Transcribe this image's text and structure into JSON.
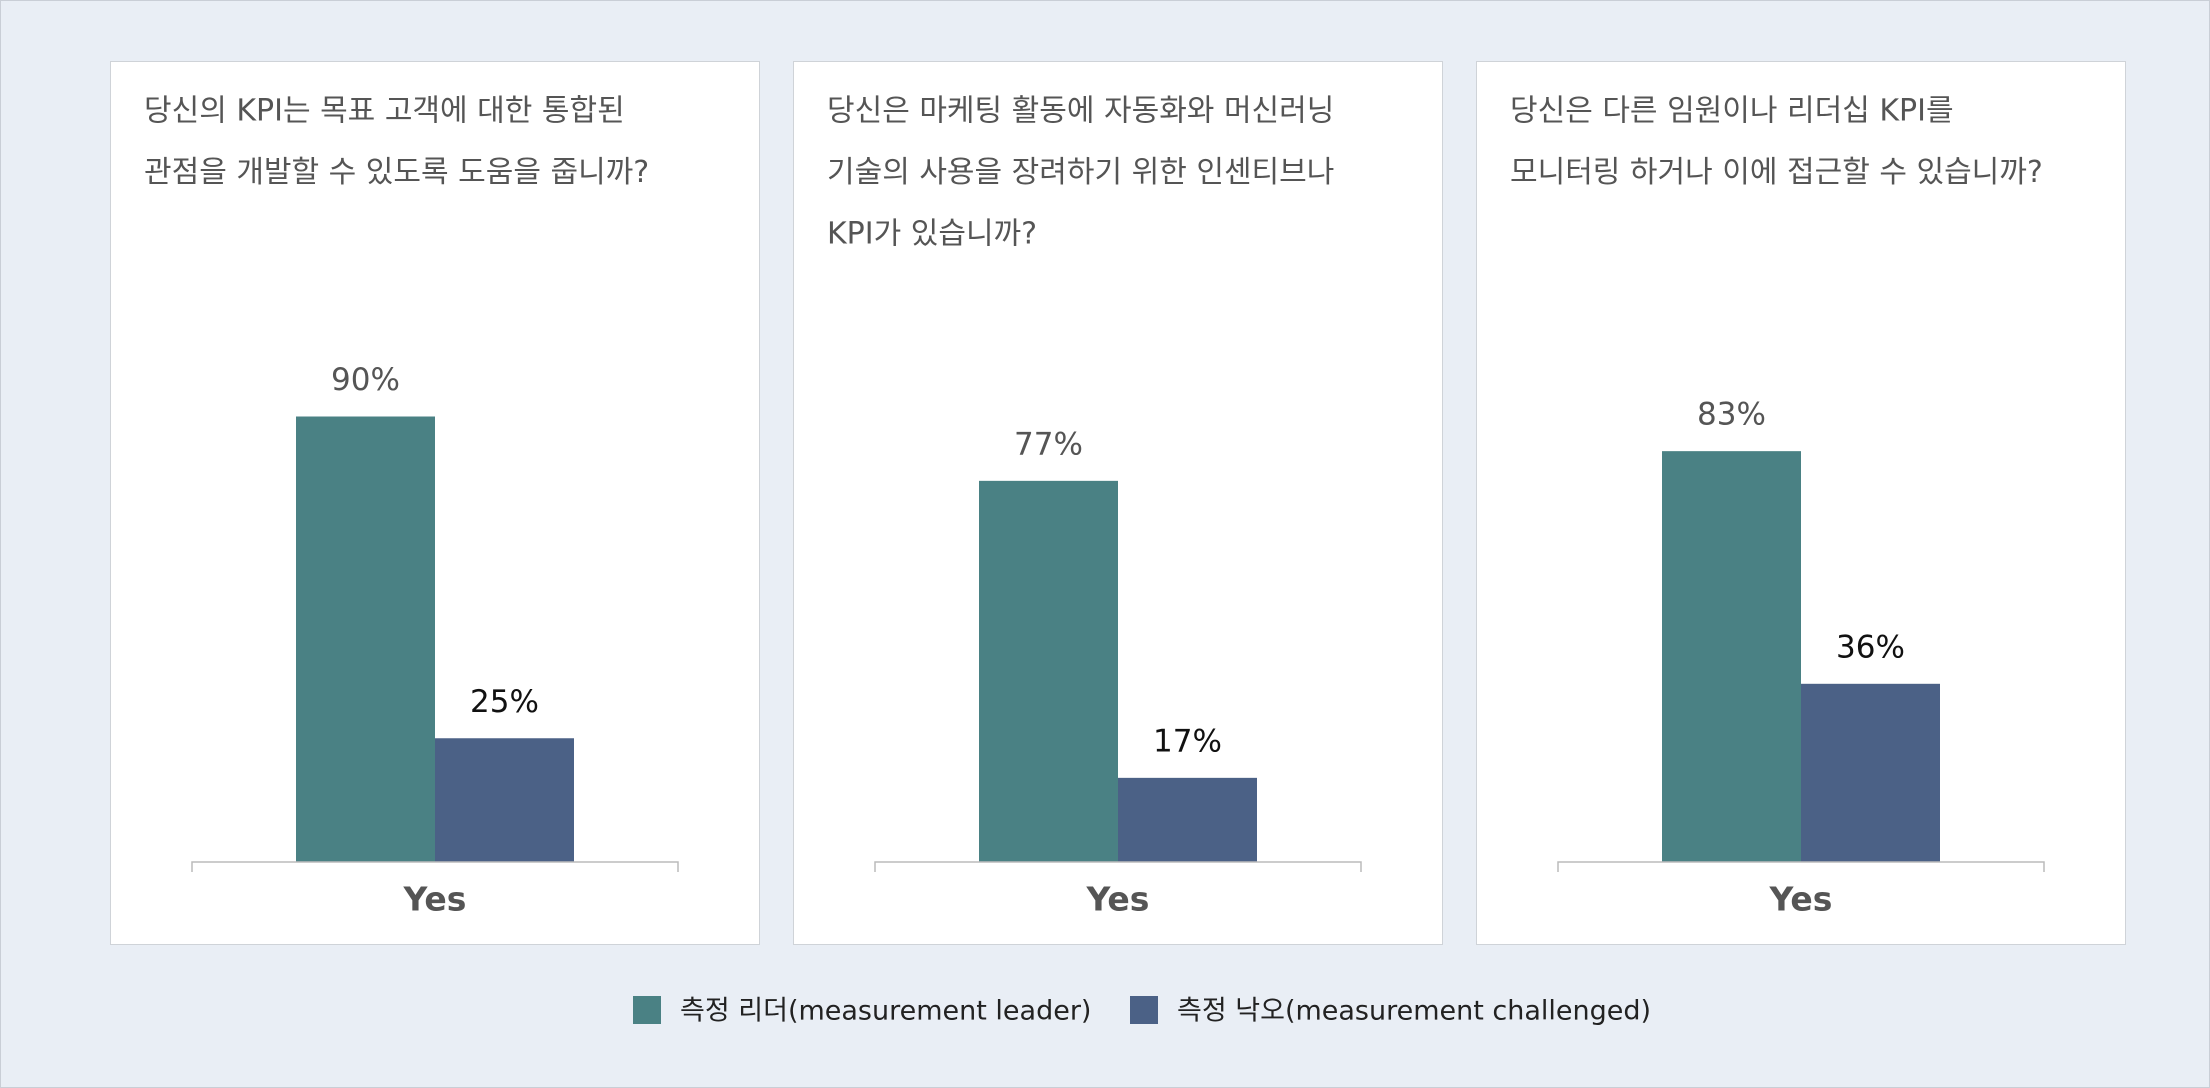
{
  "chart_data": [
    {
      "type": "bar",
      "title": [
        "당신의 KPI는 목표 고객에 대한 통합된",
        "관점을 개발할 수 있도록 도움을 줍니까?"
      ],
      "categories": [
        "Yes"
      ],
      "ylim": [
        0,
        100
      ],
      "series": [
        {
          "values": [
            90
          ],
          "value_labels": [
            "90%"
          ]
        },
        {
          "values": [
            25
          ],
          "value_labels": [
            "25%"
          ]
        }
      ]
    },
    {
      "type": "bar",
      "title": [
        "당신은 마케팅 활동에 자동화와 머신러닝",
        "기술의 사용을 장려하기 위한 인센티브나",
        "KPI가 있습니까?"
      ],
      "categories": [
        "Yes"
      ],
      "ylim": [
        0,
        100
      ],
      "series": [
        {
          "values": [
            77
          ],
          "value_labels": [
            "77%"
          ]
        },
        {
          "values": [
            17
          ],
          "value_labels": [
            "17%"
          ]
        }
      ]
    },
    {
      "type": "bar",
      "title": [
        "당신은 다른 임원이나 리더십 KPI를",
        "모니터링 하거나 이에 접근할 수 있습니까?"
      ],
      "categories": [
        "Yes"
      ],
      "ylim": [
        0,
        100
      ],
      "series": [
        {
          "values": [
            83
          ],
          "value_labels": [
            "83%"
          ]
        },
        {
          "values": [
            36
          ],
          "value_labels": [
            "36%"
          ]
        }
      ]
    }
  ],
  "legend": [
    {
      "name": "측정 리더(measurement leader)",
      "color": "#4a8184"
    },
    {
      "name": "측정 낙오(measurement challenged)",
      "color": "#4b6186"
    }
  ]
}
